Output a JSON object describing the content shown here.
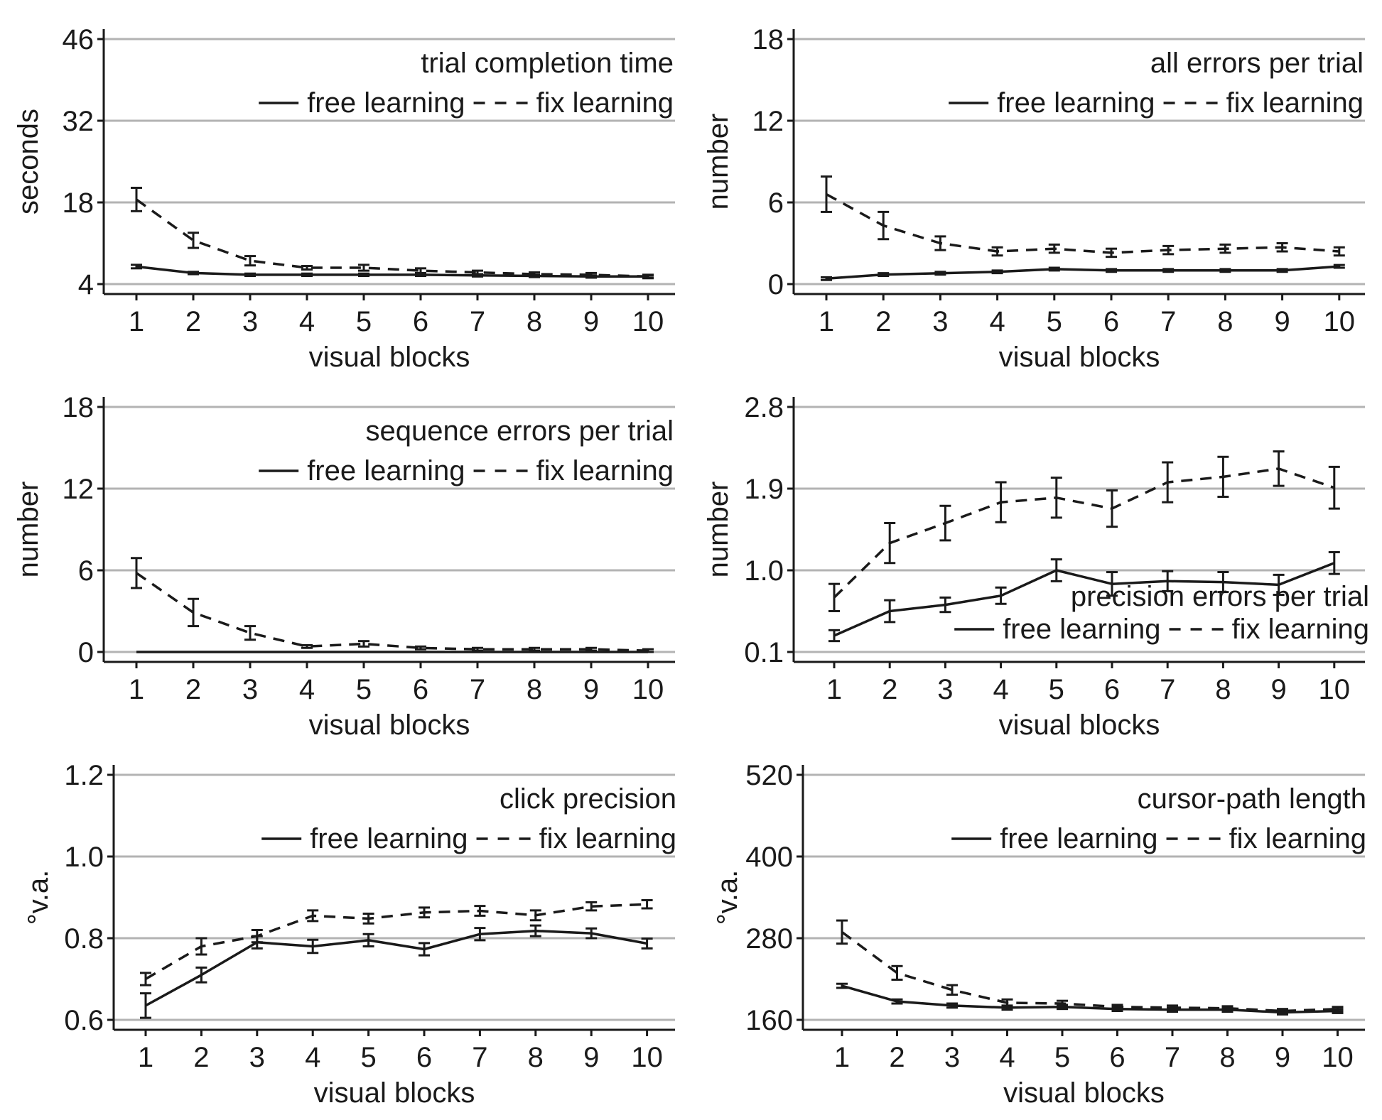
{
  "colors": {
    "grid": "#b3b3b3",
    "line": "#1a1a1a",
    "axis": "#1a1a1a"
  },
  "legend": {
    "free": "free learning",
    "fix": "fix learning"
  },
  "chart_data": [
    {
      "type": "line",
      "title": "trial completion time",
      "xlabel": "visual blocks",
      "ylabel": "seconds",
      "x": [
        1,
        2,
        3,
        4,
        5,
        6,
        7,
        8,
        9,
        10
      ],
      "ylim": [
        4,
        46
      ],
      "yticks": [
        4,
        18,
        32,
        46
      ],
      "ytick_labels": [
        "4",
        "18",
        "32",
        "46"
      ],
      "series": [
        {
          "name": "free learning",
          "style": "solid",
          "values": [
            7.0,
            5.9,
            5.6,
            5.6,
            5.6,
            5.6,
            5.5,
            5.4,
            5.3,
            5.3
          ],
          "errors": [
            0.3,
            0.2,
            0.2,
            0.2,
            0.2,
            0.2,
            0.2,
            0.2,
            0.2,
            0.2
          ]
        },
        {
          "name": "fix learning",
          "style": "dashed",
          "values": [
            18.5,
            11.5,
            8.0,
            6.8,
            6.8,
            6.3,
            6.0,
            5.7,
            5.6,
            5.3
          ],
          "errors": [
            2.0,
            1.3,
            0.8,
            0.3,
            0.5,
            0.4,
            0.3,
            0.3,
            0.3,
            0.3
          ]
        }
      ]
    },
    {
      "type": "line",
      "title": "all errors per trial",
      "xlabel": "visual blocks",
      "ylabel": "number",
      "x": [
        1,
        2,
        3,
        4,
        5,
        6,
        7,
        8,
        9,
        10
      ],
      "ylim": [
        0,
        18
      ],
      "yticks": [
        0,
        6,
        12,
        18
      ],
      "ytick_labels": [
        "0",
        "6",
        "12",
        "18"
      ],
      "series": [
        {
          "name": "free learning",
          "style": "solid",
          "values": [
            0.4,
            0.7,
            0.8,
            0.9,
            1.1,
            1.0,
            1.0,
            1.0,
            1.0,
            1.3
          ],
          "errors": [
            0.1,
            0.1,
            0.1,
            0.1,
            0.1,
            0.1,
            0.1,
            0.1,
            0.1,
            0.1
          ]
        },
        {
          "name": "fix learning",
          "style": "dashed",
          "values": [
            6.6,
            4.3,
            3.0,
            2.4,
            2.6,
            2.3,
            2.5,
            2.6,
            2.7,
            2.4
          ],
          "errors": [
            1.3,
            1.0,
            0.5,
            0.3,
            0.3,
            0.3,
            0.3,
            0.3,
            0.3,
            0.3
          ]
        }
      ]
    },
    {
      "type": "line",
      "title": "sequence errors per trial",
      "xlabel": "visual blocks",
      "ylabel": "number",
      "x": [
        1,
        2,
        3,
        4,
        5,
        6,
        7,
        8,
        9,
        10
      ],
      "ylim": [
        0,
        18
      ],
      "yticks": [
        0,
        6,
        12,
        18
      ],
      "ytick_labels": [
        "0",
        "6",
        "12",
        "18"
      ],
      "series": [
        {
          "name": "free learning",
          "style": "solid",
          "values": [
            0.0,
            0.0,
            0.0,
            0.0,
            0.0,
            0.0,
            0.0,
            0.0,
            0.0,
            0.0
          ],
          "errors": [
            0,
            0,
            0,
            0,
            0,
            0,
            0,
            0,
            0,
            0
          ]
        },
        {
          "name": "fix learning",
          "style": "dashed",
          "values": [
            5.8,
            2.9,
            1.4,
            0.4,
            0.6,
            0.3,
            0.2,
            0.2,
            0.2,
            0.1
          ],
          "errors": [
            1.1,
            1.0,
            0.5,
            0.1,
            0.2,
            0.1,
            0.1,
            0.1,
            0.1,
            0.1
          ]
        }
      ]
    },
    {
      "type": "line",
      "title": "precision errors per trial",
      "xlabel": "visual blocks",
      "ylabel": "number",
      "x": [
        1,
        2,
        3,
        4,
        5,
        6,
        7,
        8,
        9,
        10
      ],
      "ylim": [
        0.1,
        2.8
      ],
      "yticks": [
        0.1,
        1.0,
        1.9,
        2.8
      ],
      "ytick_labels": [
        "0.1",
        "1.0",
        "1.9",
        "2.8"
      ],
      "series": [
        {
          "name": "free learning",
          "style": "solid",
          "values": [
            0.28,
            0.55,
            0.62,
            0.72,
            1.0,
            0.85,
            0.88,
            0.87,
            0.84,
            1.08
          ],
          "errors": [
            0.06,
            0.12,
            0.08,
            0.09,
            0.12,
            0.13,
            0.11,
            0.11,
            0.11,
            0.12
          ]
        },
        {
          "name": "fix learning",
          "style": "dashed",
          "values": [
            0.7,
            1.3,
            1.52,
            1.75,
            1.8,
            1.68,
            1.97,
            2.03,
            2.12,
            1.91
          ],
          "errors": [
            0.15,
            0.22,
            0.19,
            0.22,
            0.22,
            0.2,
            0.22,
            0.22,
            0.19,
            0.23
          ]
        }
      ]
    },
    {
      "type": "line",
      "title": "click precision",
      "xlabel": "visual blocks",
      "ylabel": "°v.a.",
      "x": [
        1,
        2,
        3,
        4,
        5,
        6,
        7,
        8,
        9,
        10
      ],
      "ylim": [
        0.6,
        1.2
      ],
      "yticks": [
        0.6,
        0.8,
        1.0,
        1.2
      ],
      "ytick_labels": [
        "0.6",
        "0.8",
        "1.0",
        "1.2"
      ],
      "series": [
        {
          "name": "free learning",
          "style": "solid",
          "values": [
            0.635,
            0.71,
            0.79,
            0.78,
            0.795,
            0.773,
            0.81,
            0.818,
            0.812,
            0.787
          ],
          "errors": [
            0.03,
            0.018,
            0.015,
            0.016,
            0.015,
            0.015,
            0.015,
            0.013,
            0.012,
            0.012
          ]
        },
        {
          "name": "fix learning",
          "style": "dashed",
          "values": [
            0.7,
            0.78,
            0.805,
            0.855,
            0.848,
            0.863,
            0.867,
            0.856,
            0.878,
            0.883
          ],
          "errors": [
            0.015,
            0.02,
            0.015,
            0.013,
            0.012,
            0.012,
            0.012,
            0.012,
            0.01,
            0.01
          ]
        }
      ]
    },
    {
      "type": "line",
      "title": "cursor-path length",
      "xlabel": "visual blocks",
      "ylabel": "°v.a.",
      "x": [
        1,
        2,
        3,
        4,
        5,
        6,
        7,
        8,
        9,
        10
      ],
      "ylim": [
        160,
        520
      ],
      "yticks": [
        160,
        280,
        400,
        520
      ],
      "ytick_labels": [
        "160",
        "280",
        "400",
        "520"
      ],
      "series": [
        {
          "name": "free learning",
          "style": "solid",
          "values": [
            210,
            187,
            181,
            178,
            179,
            176,
            175,
            175,
            171,
            173
          ],
          "errors": [
            3,
            3,
            3,
            3,
            3,
            3,
            3,
            3,
            3,
            3
          ]
        },
        {
          "name": "fix learning",
          "style": "dashed",
          "values": [
            289,
            229,
            204,
            185,
            184,
            179,
            178,
            177,
            173,
            176
          ],
          "errors": [
            17,
            10,
            7,
            5,
            4,
            3,
            3,
            3,
            3,
            3
          ]
        }
      ]
    }
  ]
}
